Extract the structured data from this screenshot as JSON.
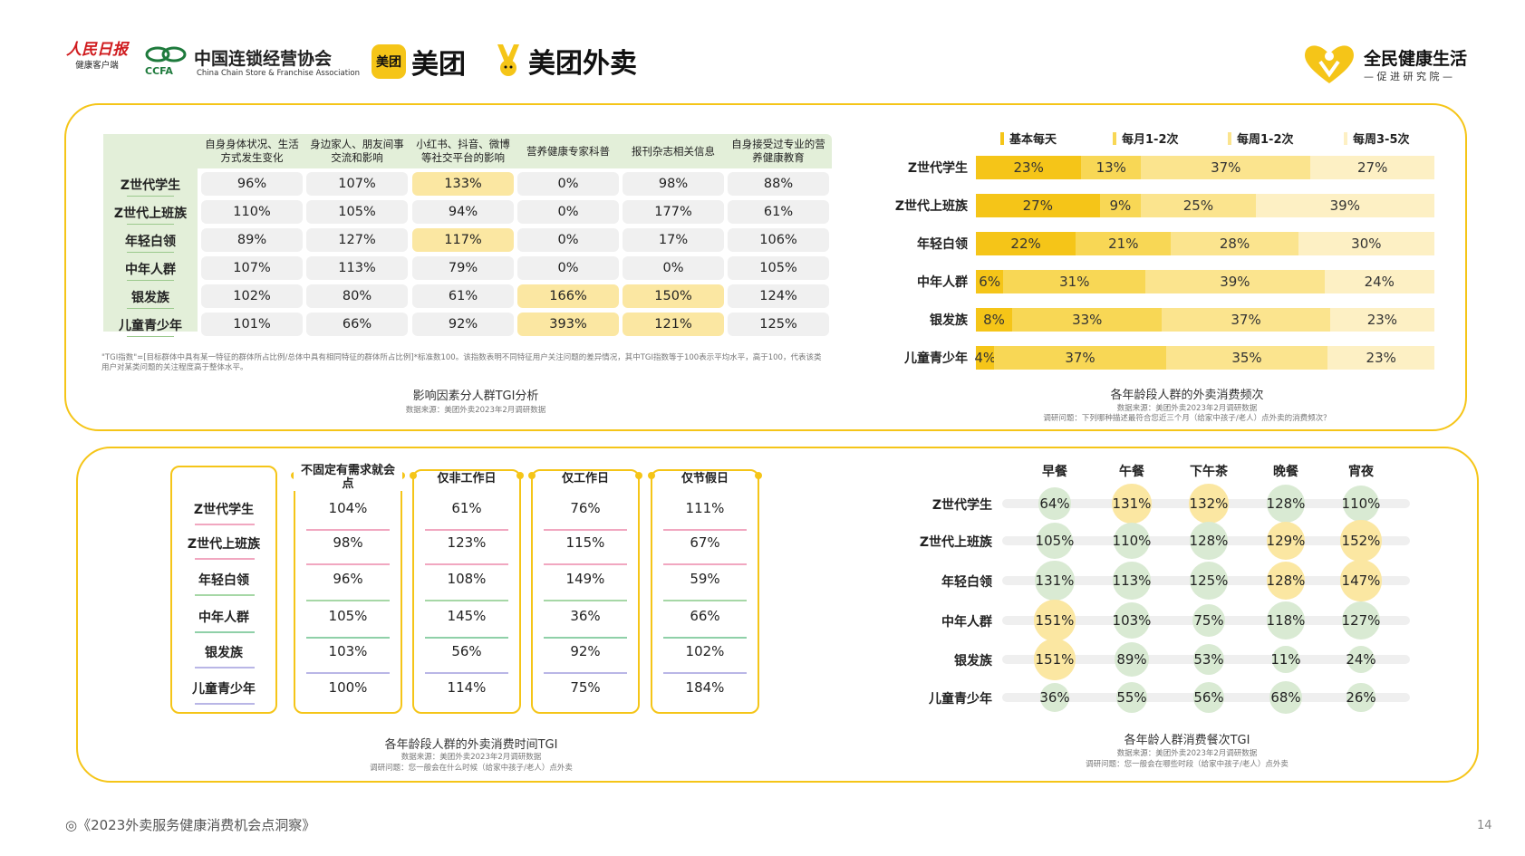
{
  "logos": {
    "people_daily": "人民日报",
    "people_daily_sub": "健康客户端",
    "ccfa_cn": "中国连锁经营协会",
    "ccfa_en": "China Chain Store & Franchise Association",
    "ccfa_abbr": "CCFA",
    "meituan_badge": "美团",
    "meituan": "美团",
    "waimai": "美团外卖",
    "health_title": "全民健康生活",
    "health_sub": "— 促 进 研 究 院 —"
  },
  "colors": {
    "accent": "#f5c518",
    "highlight": "#fbe7a2",
    "header_green": "#e3efd9",
    "green_bubble": "#d9ead3",
    "yellow_bubble": "#fbe7a2"
  },
  "tgi_table": {
    "headers": [
      "自身身体状况、生活方式发生变化",
      "身边家人、朋友间事交流和影响",
      "小红书、抖音、微博等社交平台的影响",
      "营养健康专家科普",
      "报刊杂志相关信息",
      "自身接受过专业的营养健康教育"
    ],
    "rows": [
      {
        "label": "Z世代学生",
        "values": [
          "96%",
          "107%",
          "133%",
          "0%",
          "98%",
          "88%"
        ],
        "hl": [
          false,
          false,
          true,
          false,
          false,
          false
        ]
      },
      {
        "label": "Z世代上班族",
        "values": [
          "110%",
          "105%",
          "94%",
          "0%",
          "177%",
          "61%"
        ],
        "hl": [
          false,
          false,
          false,
          false,
          false,
          false
        ]
      },
      {
        "label": "年轻白领",
        "values": [
          "89%",
          "127%",
          "117%",
          "0%",
          "17%",
          "106%"
        ],
        "hl": [
          false,
          false,
          true,
          false,
          false,
          false
        ]
      },
      {
        "label": "中年人群",
        "values": [
          "107%",
          "113%",
          "79%",
          "0%",
          "0%",
          "105%"
        ],
        "hl": [
          false,
          false,
          false,
          false,
          false,
          false
        ]
      },
      {
        "label": "银发族",
        "values": [
          "102%",
          "80%",
          "61%",
          "166%",
          "150%",
          "124%"
        ],
        "hl": [
          false,
          false,
          false,
          true,
          true,
          false
        ]
      },
      {
        "label": "儿童青少年",
        "values": [
          "101%",
          "66%",
          "92%",
          "393%",
          "121%",
          "125%"
        ],
        "hl": [
          false,
          false,
          false,
          true,
          true,
          false
        ]
      }
    ],
    "footnote_1": "\"TGI指数\"=[目标群体中具有某一特征的群体所占比例/总体中具有相同特征的群体所占比例]*标准数100。该指数表明不同特征用户关注问题的差异情况，其中TGI指数等于100表示平均水平，高于100，代表该类",
    "footnote_2": "用户对某类问题的关注程度高于整体水平。",
    "title": "影响因素分人群TGI分析",
    "source": "数据来源：美团外卖2023年2月调研数据"
  },
  "chart_data": [
    {
      "type": "bar",
      "stacked": true,
      "orientation": "horizontal",
      "title": "各年龄段人群的外卖消费频次",
      "categories": [
        "Z世代学生",
        "Z世代上班族",
        "年轻白领",
        "中年人群",
        "银发族",
        "儿童青少年"
      ],
      "series": [
        {
          "name": "基本每天",
          "color": "#f5c518",
          "values": [
            23,
            27,
            22,
            6,
            8,
            4
          ]
        },
        {
          "name": "每月1-2次",
          "color": "#f8d755",
          "values": [
            13,
            9,
            21,
            31,
            33,
            37
          ]
        },
        {
          "name": "每周1-2次",
          "color": "#fbe48e",
          "values": [
            37,
            25,
            28,
            39,
            37,
            35
          ]
        },
        {
          "name": "每周3-5次",
          "color": "#fdf0c4",
          "values": [
            27,
            39,
            30,
            24,
            23,
            23
          ]
        }
      ],
      "legend": "top",
      "source": "数据来源：美团外卖2023年2月调研数据",
      "question": "调研问题：下列哪种描述最符合您近三个月（给家中孩子/老人）点外卖的消费频次？"
    },
    {
      "type": "table",
      "title": "各年龄段人群的外卖消费时间TGI",
      "columns": [
        "不固定有需求就会点",
        "仅非工作日",
        "仅工作日",
        "仅节假日"
      ],
      "categories": [
        "Z世代学生",
        "Z世代上班族",
        "年轻白领",
        "中年人群",
        "银发族",
        "儿童青少年"
      ],
      "series": [
        {
          "name": "不固定有需求就会点",
          "values": [
            104,
            98,
            96,
            105,
            103,
            100
          ]
        },
        {
          "name": "仅非工作日",
          "values": [
            61,
            123,
            108,
            145,
            56,
            114
          ]
        },
        {
          "name": "仅工作日",
          "values": [
            76,
            115,
            149,
            36,
            92,
            75
          ]
        },
        {
          "name": "仅节假日",
          "values": [
            111,
            67,
            59,
            66,
            102,
            184
          ]
        }
      ],
      "row_line_colors": [
        "#f1a7c0",
        "#f1a7c0",
        "#a6d7a6",
        "#8fd0a8",
        "#b9b6e6",
        "#b9b6e6"
      ],
      "source": "数据来源：美团外卖2023年2月调研数据",
      "question": "调研问题：您一般会在什么时候（给家中孩子/老人）点外卖"
    },
    {
      "type": "scatter",
      "title": "各年龄人群消费餐次TGI",
      "columns": [
        "早餐",
        "午餐",
        "下午茶",
        "晚餐",
        "宵夜"
      ],
      "categories": [
        "Z世代学生",
        "Z世代上班族",
        "年轻白领",
        "中年人群",
        "银发族",
        "儿童青少年"
      ],
      "series": [
        {
          "name": "早餐",
          "values": [
            64,
            105,
            131,
            151,
            151,
            36
          ]
        },
        {
          "name": "午餐",
          "values": [
            131,
            110,
            113,
            103,
            89,
            55
          ]
        },
        {
          "name": "下午茶",
          "values": [
            132,
            128,
            125,
            75,
            53,
            56
          ]
        },
        {
          "name": "晚餐",
          "values": [
            128,
            129,
            128,
            118,
            11,
            68
          ]
        },
        {
          "name": "宵夜",
          "values": [
            110,
            152,
            147,
            127,
            24,
            26
          ]
        }
      ],
      "highlight_cells": [
        [
          0,
          1
        ],
        [
          0,
          2
        ],
        [
          1,
          3
        ],
        [
          1,
          4
        ],
        [
          2,
          3
        ],
        [
          2,
          4
        ],
        [
          3,
          0
        ],
        [
          4,
          0
        ]
      ],
      "source": "数据来源：美团外卖2023年2月调研数据",
      "question": "调研问题：您一般会在哪些时段（给家中孩子/老人）点外卖"
    }
  ],
  "footer": {
    "report": "◎《2023外卖服务健康消费机会点洞察》",
    "page": "14"
  }
}
